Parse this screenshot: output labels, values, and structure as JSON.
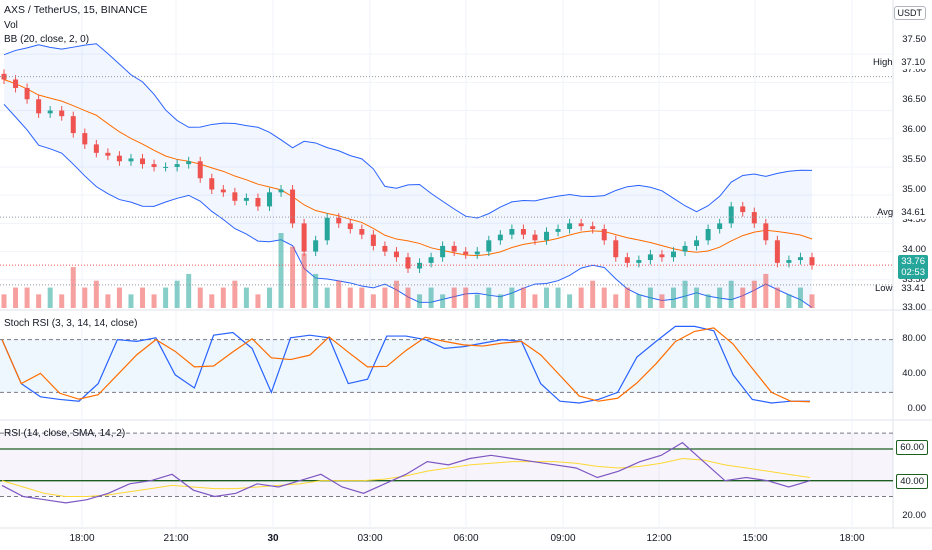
{
  "header": {
    "symbol_line": "AXS / TetherUS, 15, BINANCE",
    "vol_label": "Vol",
    "bb_label": "BB (20, close, 2, 0)",
    "currency": "USDT"
  },
  "price_panel": {
    "y_ticks": [
      "37.50",
      "37.00",
      "36.50",
      "36.00",
      "35.50",
      "35.00",
      "34.50",
      "34.00",
      "33.50",
      "33.00"
    ],
    "high_label": "High",
    "high_value": "37.10",
    "avg_label": "Avg",
    "avg_value": "34.61",
    "low_label": "Low",
    "low_value": "33.41",
    "last_price": "33.76",
    "countdown": "02:53"
  },
  "stoch_panel": {
    "label": "Stoch RSI (3, 3, 14, 14, close)",
    "y_ticks": [
      "80.00",
      "40.00",
      "0.00"
    ]
  },
  "rsi_panel": {
    "label": "RSI (14, close, SMA, 14, 2)",
    "y_ticks": [
      "60.00",
      "40.00",
      "20.00"
    ]
  },
  "x_axis": {
    "ticks": [
      "18:00",
      "21:00",
      "30",
      "03:00",
      "06:00",
      "09:00",
      "12:00",
      "15:00",
      "18:00"
    ]
  },
  "colors": {
    "up": "#26a69a",
    "down": "#ef5350",
    "bb_band": "#2962ff",
    "bb_basis": "#ff6d00",
    "stoch_k": "#2962ff",
    "stoch_d": "#ff6d00",
    "rsi": "#7e57c2",
    "rsi_ma": "#fdd835",
    "rsi_level": "#1b5e20"
  },
  "chart_data": {
    "type": "candlestick",
    "price_close": [
      37.05,
      36.9,
      36.7,
      36.45,
      36.5,
      36.4,
      36.1,
      35.9,
      35.75,
      35.7,
      35.6,
      35.65,
      35.55,
      35.5,
      35.5,
      35.55,
      35.6,
      35.3,
      35.1,
      35.05,
      34.9,
      34.95,
      34.8,
      35.05,
      35.1,
      34.5,
      34.0,
      34.2,
      34.6,
      34.5,
      34.4,
      34.3,
      34.1,
      34.0,
      33.9,
      33.7,
      33.8,
      33.9,
      34.1,
      34.0,
      33.95,
      34.0,
      34.2,
      34.3,
      34.4,
      34.3,
      34.2,
      34.35,
      34.4,
      34.5,
      34.45,
      34.4,
      34.2,
      33.9,
      33.8,
      33.85,
      33.95,
      33.9,
      34.0,
      34.1,
      34.2,
      34.4,
      34.5,
      34.8,
      34.7,
      34.5,
      34.2,
      33.8,
      33.85,
      33.9,
      33.76
    ],
    "volume": [
      2,
      3,
      3,
      2,
      3,
      2,
      6,
      3,
      4,
      2,
      3,
      2,
      3,
      2,
      3,
      4,
      5,
      3,
      2,
      3,
      4,
      3,
      2,
      3,
      11,
      9,
      8,
      5,
      3,
      4,
      3,
      3,
      2,
      3,
      4,
      3,
      2,
      3,
      2,
      3,
      3,
      2,
      3,
      2,
      3,
      3,
      2,
      3,
      3,
      2,
      3,
      4,
      3,
      2,
      3,
      2,
      3,
      2,
      3,
      4,
      3,
      2,
      3,
      4,
      3,
      4,
      5,
      3,
      2,
      3,
      2
    ],
    "stoch_k": [
      80,
      30,
      15,
      12,
      10,
      30,
      80,
      78,
      82,
      40,
      25,
      85,
      88,
      70,
      20,
      82,
      85,
      82,
      30,
      35,
      84,
      84,
      80,
      70,
      72,
      76,
      80,
      78,
      30,
      10,
      8,
      12,
      20,
      60,
      78,
      95,
      95,
      90,
      40,
      12,
      8,
      10,
      10
    ],
    "rsi": [
      37,
      30,
      28,
      26,
      28,
      32,
      38,
      40,
      44,
      34,
      30,
      32,
      38,
      36,
      40,
      44,
      36,
      32,
      38,
      44,
      52,
      50,
      54,
      56,
      54,
      52,
      50,
      48,
      42,
      46,
      52,
      56,
      64,
      52,
      40,
      42,
      40,
      36,
      40
    ],
    "rsi_ma": [
      40,
      36,
      32,
      30,
      30,
      31,
      33,
      35,
      37,
      36,
      35,
      35,
      36,
      37,
      38,
      40,
      40,
      40,
      41,
      43,
      46,
      48,
      50,
      51,
      52,
      52,
      52,
      51,
      49,
      48,
      49,
      51,
      54,
      53,
      50,
      48,
      46,
      44,
      42
    ],
    "y_range_price": [
      33.0,
      37.75
    ],
    "x_ticks": [
      "18:00",
      "21:00",
      "30",
      "03:00",
      "06:00",
      "09:00",
      "12:00",
      "15:00",
      "18:00"
    ]
  }
}
